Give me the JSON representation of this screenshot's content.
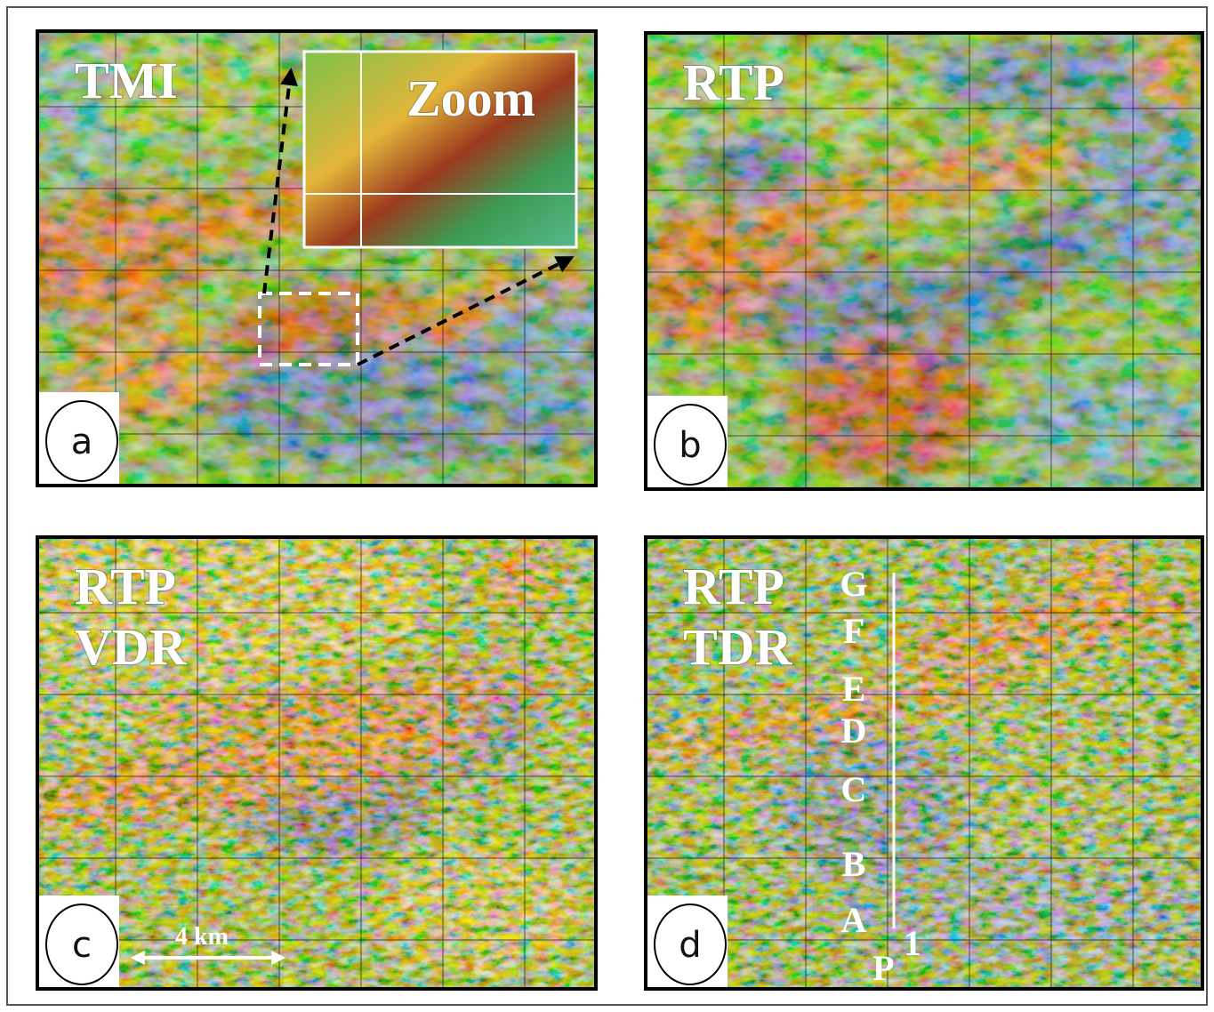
{
  "panels": [
    {
      "letter": "a",
      "title": [
        "TMI"
      ],
      "inset_label": "Zoom"
    },
    {
      "letter": "b",
      "title": [
        "RTP"
      ]
    },
    {
      "letter": "c",
      "title": [
        "RTP",
        "VDR"
      ],
      "scale_label": "4 km"
    },
    {
      "letter": "d",
      "title": [
        "RTP",
        "TDR"
      ],
      "profile_points": [
        "G",
        "F",
        "E",
        "D",
        "C",
        "B",
        "A"
      ],
      "profile_name": "P",
      "profile_superscript": "1"
    }
  ]
}
